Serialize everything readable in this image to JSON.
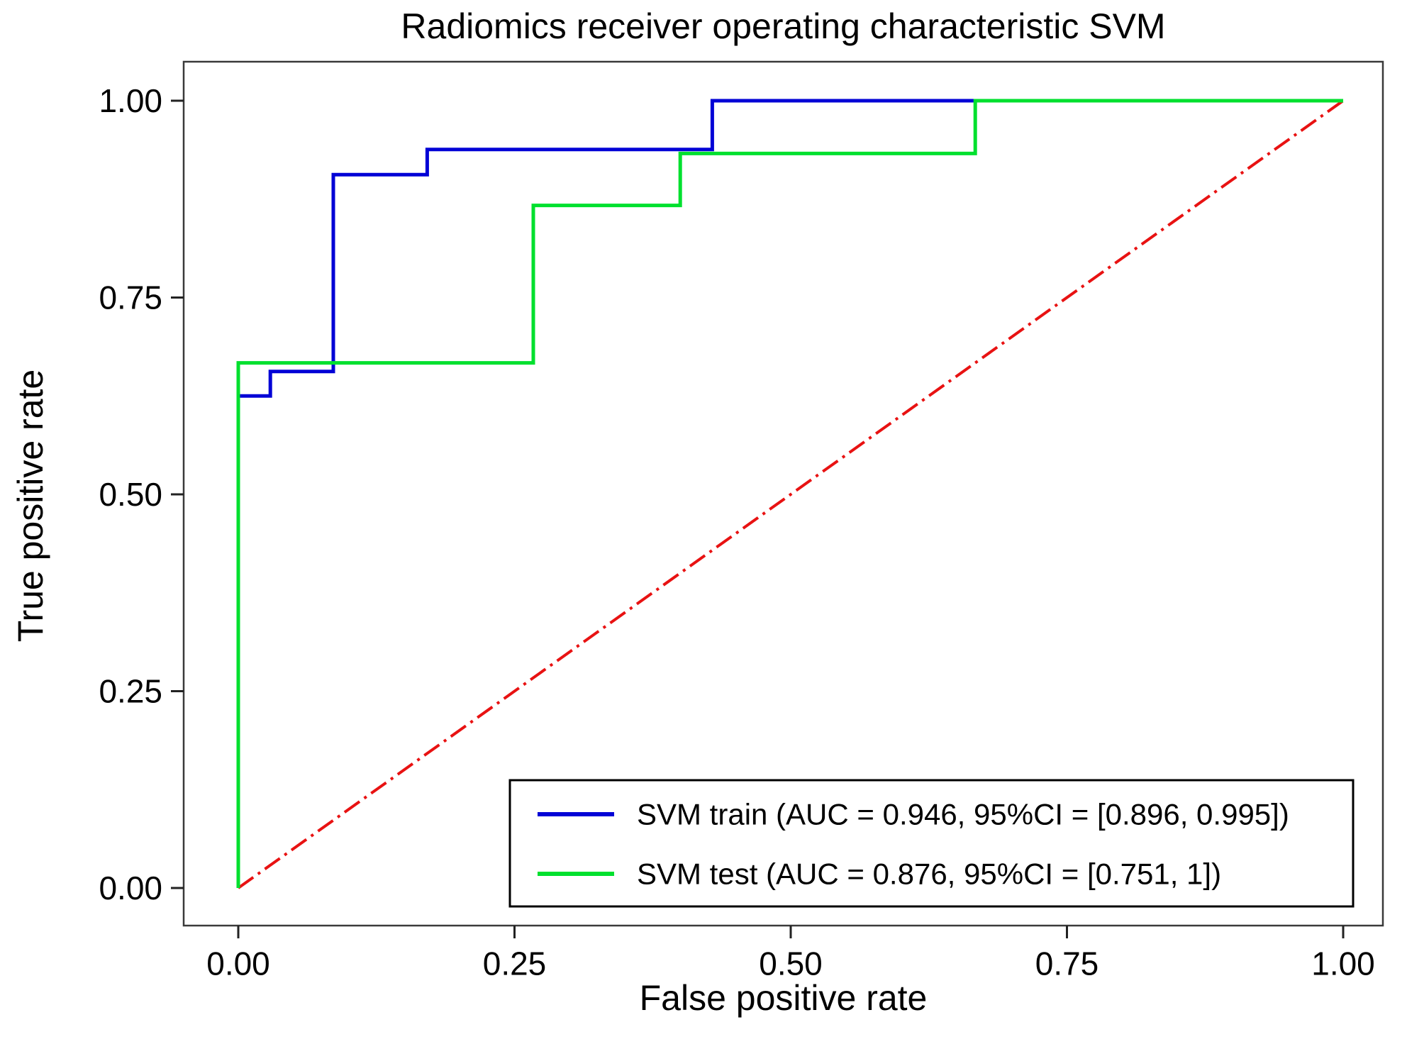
{
  "figure": {
    "background": "#ffffff",
    "spine_color": "#3a3a3a"
  },
  "chart_data": {
    "type": "line",
    "subtype": "roc-step-curves",
    "title": "Radiomics receiver operating characteristic SVM",
    "xlabel": "False positive rate",
    "ylabel": "True positive rate",
    "xlim": [
      0,
      1
    ],
    "ylim": [
      0,
      1
    ],
    "grid": false,
    "xtick_values": [
      0,
      0.25,
      0.5,
      0.75,
      1
    ],
    "xtick_labels": [
      "0.00",
      "0.25",
      "0.50",
      "0.75",
      "1.00"
    ],
    "ytick_values": [
      0,
      0.25,
      0.5,
      0.75,
      1
    ],
    "ytick_labels": [
      "0.00",
      "0.25",
      "0.50",
      "0.75",
      "1.00"
    ],
    "series": [
      {
        "name": "svm-train",
        "legend_label": "SVM train (AUC = 0.946, 95%CI = [0.896, 0.995])",
        "auc": 0.946,
        "ci_95": [
          0.896,
          0.995
        ],
        "color": "#0202d6",
        "line_style": "solid",
        "line_width": 5,
        "x": [
          0,
          0,
          0.029,
          0.029,
          0.086,
          0.086,
          0.171,
          0.171,
          0.429,
          0.429,
          1
        ],
        "y": [
          0,
          0.625,
          0.625,
          0.656,
          0.656,
          0.906,
          0.906,
          0.938,
          0.938,
          1,
          1
        ]
      },
      {
        "name": "svm-test",
        "legend_label": "SVM test (AUC = 0.876, 95%CI = [0.751, 1])",
        "auc": 0.876,
        "ci_95": [
          0.751,
          1
        ],
        "color": "#00e02e",
        "line_style": "solid",
        "line_width": 5,
        "x": [
          0,
          0,
          0.267,
          0.267,
          0.4,
          0.4,
          0.667,
          0.667,
          1
        ],
        "y": [
          0,
          0.667,
          0.667,
          0.867,
          0.867,
          0.933,
          0.933,
          1,
          1
        ]
      }
    ],
    "chance_line": {
      "name": "chance-diagonal",
      "color": "#e81212",
      "line_style": "dash-dot",
      "line_width": 4,
      "x": [
        0,
        1
      ],
      "y": [
        0,
        1
      ]
    },
    "legend": {
      "position": "lower right",
      "border_color": "#000000",
      "background": "#ffffff"
    }
  }
}
